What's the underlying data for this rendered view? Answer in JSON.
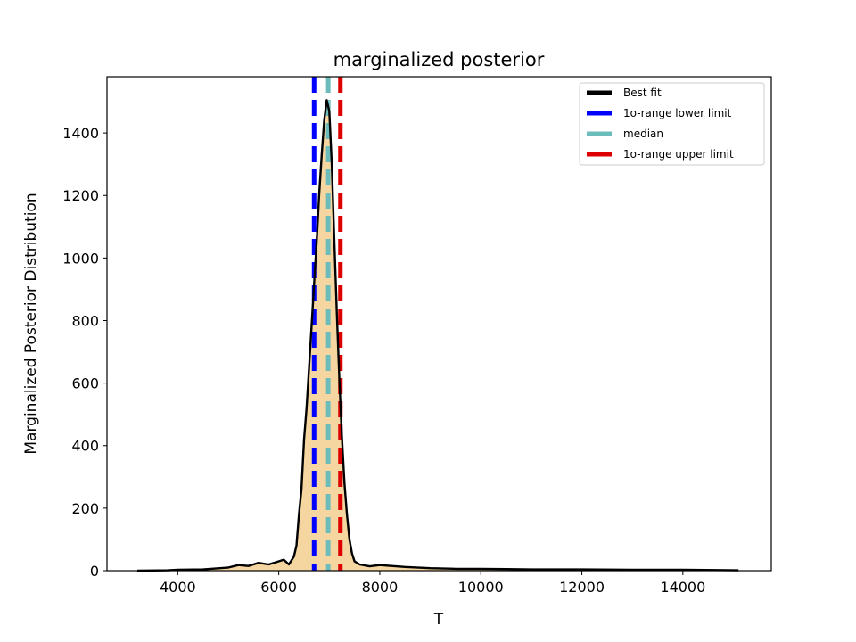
{
  "chart_data": {
    "type": "area",
    "title": "marginalized posterior",
    "xlabel": "T",
    "ylabel": "Marginalized Posterior Distribution",
    "xlim": [
      2600,
      15750
    ],
    "ylim": [
      0,
      1580
    ],
    "x_ticks": [
      4000,
      6000,
      8000,
      10000,
      12000,
      14000
    ],
    "y_ticks": [
      0,
      200,
      400,
      600,
      800,
      1000,
      1200,
      1400
    ],
    "grid": false,
    "legend_position": "top-right",
    "fill_color": "#f5d5a0",
    "series": [
      {
        "name": "Best fit",
        "color": "#000000",
        "x": [
          3200,
          3800,
          4000,
          4500,
          5000,
          5200,
          5400,
          5600,
          5800,
          6000,
          6100,
          6200,
          6300,
          6350,
          6400,
          6450,
          6500,
          6550,
          6600,
          6650,
          6700,
          6750,
          6800,
          6850,
          6900,
          6950,
          7000,
          7050,
          7100,
          7150,
          7200,
          7250,
          7300,
          7350,
          7400,
          7450,
          7500,
          7600,
          7800,
          8000,
          8500,
          9000,
          9500,
          10000,
          10500,
          11000,
          12000,
          13000,
          14000,
          15100
        ],
        "y": [
          0,
          1,
          3,
          4,
          10,
          18,
          15,
          25,
          20,
          30,
          35,
          20,
          45,
          80,
          180,
          260,
          420,
          520,
          650,
          780,
          920,
          1050,
          1200,
          1330,
          1440,
          1505,
          1470,
          1300,
          1060,
          820,
          610,
          430,
          280,
          180,
          100,
          55,
          30,
          20,
          14,
          18,
          12,
          8,
          6,
          6,
          5,
          4,
          4,
          3,
          3,
          1
        ]
      }
    ],
    "vlines": [
      {
        "name": "1σ-range lower limit",
        "x": 6700,
        "color": "#0000ff",
        "style": "dashed"
      },
      {
        "name": "median",
        "x": 6980,
        "color": "#6cbcbc",
        "style": "dashed"
      },
      {
        "name": "1σ-range upper limit",
        "x": 7220,
        "color": "#dd0000",
        "style": "dashed"
      }
    ]
  }
}
